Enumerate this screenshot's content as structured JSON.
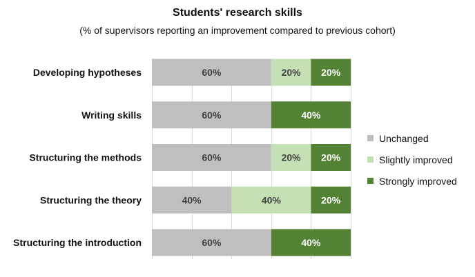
{
  "chart_data": {
    "type": "bar",
    "orientation": "horizontal",
    "stacked": true,
    "title": "Students' research skills",
    "subtitle": "(% of supervisors reporting an improvement compared to previous cohort)",
    "categories": [
      "Developing hypotheses",
      "Writing skills",
      "Structuring the methods",
      "Structuring the theory",
      "Structuring the introduction"
    ],
    "series": [
      {
        "name": "Unchanged",
        "color": "#bfbfbf",
        "text_color": "#404040",
        "values": [
          60,
          60,
          60,
          40,
          60
        ]
      },
      {
        "name": "Slightly improved",
        "color": "#c5e0b4",
        "text_color": "#404040",
        "values": [
          20,
          0,
          20,
          40,
          0
        ]
      },
      {
        "name": "Strongly improved",
        "color": "#548235",
        "text_color": "#ffffff",
        "values": [
          20,
          40,
          20,
          20,
          40
        ]
      }
    ],
    "value_suffix": "%",
    "xlim": [
      0,
      100
    ],
    "grid": true,
    "legend_position": "right"
  }
}
